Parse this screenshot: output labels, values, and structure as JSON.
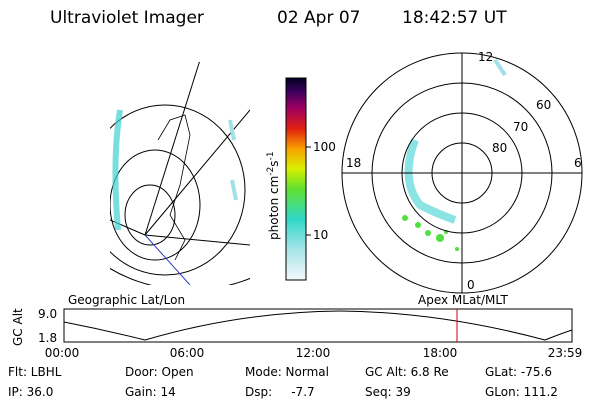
{
  "header": {
    "title": "Ultraviolet Imager",
    "date": "02 Apr 07",
    "time": "18:42:57 UT"
  },
  "colorbar": {
    "label": [
      "photon cm",
      "-2",
      "s",
      "-1"
    ],
    "ticks": [
      "100",
      "10"
    ]
  },
  "polar": {
    "labels": [
      "12",
      "18",
      "6",
      "0",
      "80",
      "70",
      "60"
    ]
  },
  "panels": {
    "left": "Geographic Lat/Lon",
    "right": "Apex MLat/MLT"
  },
  "timeline": {
    "ylabel": "GC Alt",
    "yticks": [
      "9.0",
      "1.8"
    ],
    "xticks": [
      "00:00",
      "06:00",
      "12:00",
      "18:00",
      "23:59"
    ]
  },
  "info": [
    [
      "Flt: LBHL",
      "Door: Open",
      "Mode: Normal",
      "GC Alt: 6.8 Re",
      "GLat: -75.6"
    ],
    [
      "IP: 36.0",
      "Gain: 14",
      "Dsp:     -7.7",
      "Seq: 39",
      "GLon: 111.2"
    ]
  ]
}
